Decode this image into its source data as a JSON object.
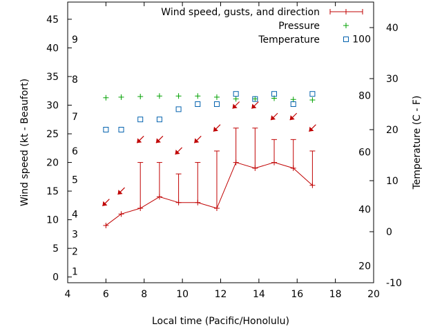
{
  "chart_data": {
    "type": "line",
    "xlabel": "Local time (Pacific/Honolulu)",
    "ylabel": "Wind speed (kt - Beaufort)",
    "y2label": "Temperature (C - F)",
    "xlim": [
      4,
      20
    ],
    "ylim": [
      -1,
      48
    ],
    "y2lim": [
      -10,
      45
    ],
    "x_ticks": [
      4,
      6,
      8,
      10,
      12,
      14,
      16,
      18,
      20
    ],
    "y_ticks": [
      0,
      5,
      10,
      15,
      20,
      25,
      30,
      35,
      40,
      45
    ],
    "y2_ticks_celsius": [
      -10,
      0,
      10,
      20,
      30,
      40
    ],
    "fahrenheit_labels": [
      {
        "label": "20",
        "celsius": -6.7
      },
      {
        "label": "40",
        "celsius": 4.4
      },
      {
        "label": "60",
        "celsius": 15.6
      },
      {
        "label": "80",
        "celsius": 26.7
      },
      {
        "label": "100",
        "celsius": 37.8
      }
    ],
    "beaufort_labels": [
      {
        "label": "1",
        "speed": 1
      },
      {
        "label": "2",
        "speed": 4.5
      },
      {
        "label": "3",
        "speed": 7.5
      },
      {
        "label": "4",
        "speed": 11
      },
      {
        "label": "5",
        "speed": 17
      },
      {
        "label": "6",
        "speed": 22
      },
      {
        "label": "7",
        "speed": 28
      },
      {
        "label": "8",
        "speed": 34.5
      },
      {
        "label": "9",
        "speed": 41.5
      }
    ],
    "legend_position": "top-right",
    "series": [
      {
        "name": "Wind speed, gusts, and direction",
        "color": "#c00000",
        "x": [
          6,
          6.8,
          7.8,
          8.8,
          9.8,
          10.8,
          11.8,
          12.8,
          13.8,
          14.8,
          15.8,
          16.8
        ],
        "values": [
          9,
          11,
          12,
          14,
          13,
          13,
          12,
          20,
          19,
          20,
          19,
          16
        ],
        "gusts": [
          9,
          11,
          20,
          20,
          18,
          20,
          22,
          26,
          26,
          24,
          24,
          22
        ]
      },
      {
        "name": "Pressure",
        "color": "#00a000",
        "x": [
          6,
          6.8,
          7.8,
          8.8,
          9.8,
          10.8,
          11.8,
          12.8,
          13.8,
          14.8,
          15.8,
          16.8
        ],
        "values": [
          31.3,
          31.4,
          31.5,
          31.6,
          31.6,
          31.6,
          31.4,
          31.1,
          31.1,
          31.2,
          31.0,
          30.9
        ]
      },
      {
        "name": "Temperature",
        "color": "#0060ad",
        "x": [
          6,
          6.8,
          7.8,
          8.8,
          9.8,
          10.8,
          11.8,
          12.8,
          13.8,
          14.8,
          15.8,
          16.8
        ],
        "values": [
          20,
          20,
          22,
          22,
          24,
          25,
          25,
          27,
          26,
          27,
          25,
          27
        ]
      }
    ],
    "wind_direction_arrows": [
      {
        "x": 6,
        "speed": 13
      },
      {
        "x": 6.8,
        "speed": 15
      },
      {
        "x": 7.8,
        "speed": 24
      },
      {
        "x": 8.8,
        "speed": 24
      },
      {
        "x": 9.8,
        "speed": 22
      },
      {
        "x": 10.8,
        "speed": 24
      },
      {
        "x": 11.8,
        "speed": 26
      },
      {
        "x": 12.8,
        "speed": 30
      },
      {
        "x": 13.8,
        "speed": 30
      },
      {
        "x": 14.8,
        "speed": 28
      },
      {
        "x": 15.8,
        "speed": 28
      },
      {
        "x": 16.8,
        "speed": 26
      }
    ],
    "colors": {
      "axis": "#000000"
    }
  }
}
